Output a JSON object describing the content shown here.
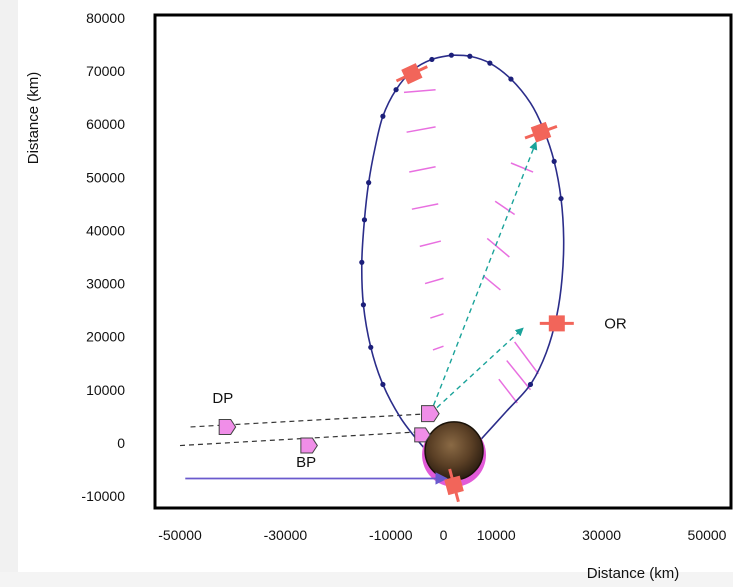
{
  "chart_data": {
    "type": "diagram",
    "xlabel": "Distance (km)",
    "ylabel": "Distance (km)",
    "xlim": [
      -50000,
      50000
    ],
    "ylim": [
      -10000,
      80000
    ],
    "x_ticks": [
      "-50000",
      "-30000",
      "-10000",
      "0",
      "10000",
      "30000",
      "50000"
    ],
    "x_tick_values": [
      -50000,
      -30000,
      -10000,
      0,
      10000,
      30000,
      50000
    ],
    "y_ticks": [
      "80000",
      "70000",
      "60000",
      "50000",
      "40000",
      "30000",
      "20000",
      "10000",
      "0",
      "-10000"
    ],
    "y_tick_values": [
      80000,
      70000,
      60000,
      50000,
      40000,
      30000,
      20000,
      10000,
      0,
      -10000
    ],
    "orbit_points": [
      [
        1500,
        73000
      ],
      [
        -2200,
        72200
      ],
      [
        -5800,
        70200
      ],
      [
        -9000,
        66500
      ],
      [
        -11500,
        61500
      ],
      [
        -13000,
        55500
      ],
      [
        -14200,
        49000
      ],
      [
        -15000,
        42000
      ],
      [
        -15500,
        34000
      ],
      [
        -15200,
        26000
      ],
      [
        -13800,
        18000
      ],
      [
        -11500,
        11000
      ],
      [
        -8200,
        4800
      ],
      [
        -4500,
        0
      ],
      [
        -1500,
        -3200
      ],
      [
        1000,
        -4800
      ],
      [
        3000,
        -3800
      ],
      [
        6500,
        0
      ],
      [
        12000,
        6000
      ],
      [
        16500,
        11000
      ],
      [
        19500,
        17000
      ],
      [
        21500,
        24000
      ],
      [
        22500,
        31000
      ],
      [
        22800,
        38500
      ],
      [
        22300,
        46000
      ],
      [
        21000,
        53000
      ],
      [
        19000,
        59000
      ],
      [
        16500,
        64000
      ],
      [
        12800,
        68500
      ],
      [
        8800,
        71500
      ],
      [
        5000,
        72800
      ],
      [
        1500,
        73000
      ]
    ],
    "markers": [
      [
        1500,
        73000
      ],
      [
        -2200,
        72200
      ],
      [
        -9000,
        66500
      ],
      [
        -11500,
        61500
      ],
      [
        -14200,
        49000
      ],
      [
        -15000,
        42000
      ],
      [
        -15500,
        34000
      ],
      [
        -15200,
        26000
      ],
      [
        -13800,
        18000
      ],
      [
        -11500,
        11000
      ],
      [
        16500,
        11000
      ],
      [
        22300,
        46000
      ],
      [
        21000,
        53000
      ],
      [
        12800,
        68500
      ],
      [
        8800,
        71500
      ],
      [
        5000,
        72800
      ]
    ],
    "arrows": [
      {
        "from": [
          -2500,
          5500
        ],
        "to": [
          17500,
          56500
        ]
      },
      {
        "from": [
          -2500,
          5500
        ],
        "to": [
          15000,
          21500
        ]
      }
    ],
    "magenta_lines": [
      [
        [
          -7500,
          66000
        ],
        [
          -1500,
          66500
        ]
      ],
      [
        [
          -7000,
          58500
        ],
        [
          -1500,
          59500
        ]
      ],
      [
        [
          -6500,
          51000
        ],
        [
          -1500,
          52000
        ]
      ],
      [
        [
          -6000,
          44000
        ],
        [
          -1000,
          45000
        ]
      ],
      [
        [
          -4500,
          37000
        ],
        [
          -500,
          38000
        ]
      ],
      [
        [
          -3500,
          30000
        ],
        [
          0,
          31000
        ]
      ],
      [
        [
          -2500,
          23500
        ],
        [
          0,
          24300
        ]
      ],
      [
        [
          -2000,
          17500
        ],
        [
          0,
          18200
        ]
      ],
      [
        [
          12800,
          52700
        ],
        [
          17000,
          51000
        ]
      ],
      [
        [
          9800,
          45500
        ],
        [
          13500,
          43000
        ]
      ],
      [
        [
          8300,
          38500
        ],
        [
          12500,
          35000
        ]
      ],
      [
        [
          7500,
          31500
        ],
        [
          10800,
          28800
        ]
      ],
      [
        [
          13500,
          19000
        ],
        [
          18000,
          13000
        ]
      ],
      [
        [
          12000,
          15500
        ],
        [
          16500,
          10000
        ]
      ],
      [
        [
          10500,
          12000
        ],
        [
          14000,
          7500
        ]
      ]
    ],
    "dashed_lines": [
      [
        [
          -48000,
          3000
        ],
        [
          -2500,
          5500
        ]
      ],
      [
        [
          -50000,
          -500
        ],
        [
          -2500,
          2200
        ]
      ]
    ],
    "spacecraft": [
      {
        "pos": [
          -6000,
          69500
        ],
        "angle": -25
      },
      {
        "pos": [
          18500,
          58500
        ],
        "angle": -20
      },
      {
        "pos": [
          21500,
          22500
        ],
        "angle": 0
      },
      {
        "pos": [
          2000,
          -8000
        ],
        "angle": 75
      }
    ],
    "pentagons": [
      {
        "pos": [
          -41000,
          3000
        ]
      },
      {
        "pos": [
          -25500,
          -500
        ]
      }
    ],
    "body": {
      "center": [
        2000,
        -1500
      ],
      "radius": 5500
    },
    "approach_arrow": {
      "from": [
        -49000,
        -6700
      ],
      "to": [
        1500,
        -6700
      ]
    },
    "labels": {
      "dp": "DP",
      "bp": "BP",
      "or": "OR"
    },
    "label_positions": {
      "dp": [
        -41000,
        7500
      ],
      "bp": [
        -25500,
        -4500
      ],
      "or": [
        30500,
        22500
      ]
    }
  }
}
